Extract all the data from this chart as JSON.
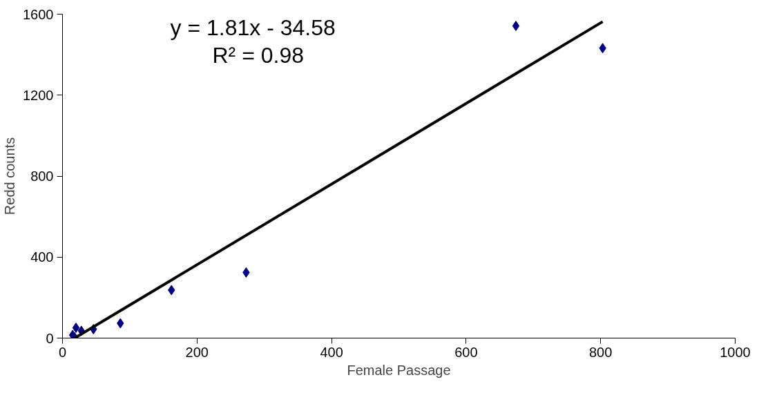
{
  "chart_data": {
    "type": "scatter",
    "xlabel": "Female Passage",
    "ylabel": "Redd counts",
    "xlim": [
      0,
      1000
    ],
    "ylim": [
      0,
      1600
    ],
    "xticks": [
      0,
      200,
      400,
      600,
      800,
      1000
    ],
    "yticks": [
      0,
      400,
      800,
      1200,
      1600
    ],
    "grid": false,
    "annotations": [
      "y = 1.81x - 34.58",
      "R² = 0.98"
    ],
    "series": [
      {
        "color": "#000080",
        "marker": "diamond",
        "x": [
          674,
          803,
          273,
          162,
          86,
          46,
          28,
          20,
          15,
          18
        ],
        "values": [
          1542,
          1432,
          324,
          237,
          73,
          44,
          36,
          51,
          15,
          4
        ]
      },
      {
        "type": "line",
        "color": "#000000",
        "x": [
          18,
          803
        ],
        "values": [
          0,
          1563
        ],
        "marker": "none",
        "line_style": "solid"
      }
    ]
  }
}
